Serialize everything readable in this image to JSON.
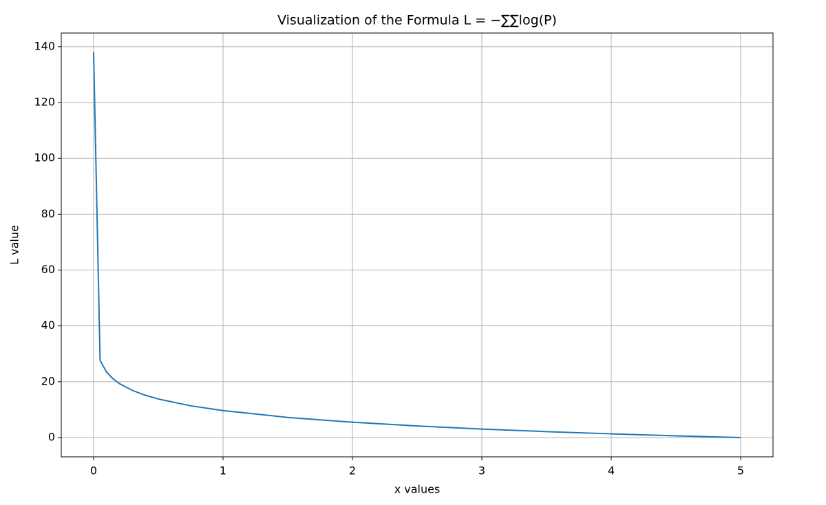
{
  "chart_data": {
    "type": "line",
    "title": "Visualization of the Formula L = −∑∑log(P)",
    "x_label": "x values",
    "y_label": "L value",
    "x": [
      0,
      0.05,
      0.1,
      0.15,
      0.2,
      0.3,
      0.4,
      0.5,
      0.75,
      1,
      1.5,
      2,
      2.5,
      3,
      3.5,
      4,
      4.5,
      5
    ],
    "series": [
      {
        "name": "L",
        "color": "#1f77b4",
        "values": [
          138,
          27.63,
          23.47,
          21.04,
          19.31,
          16.88,
          15.15,
          13.82,
          11.38,
          9.66,
          7.22,
          5.5,
          4.16,
          3.06,
          2.14,
          1.34,
          0.63,
          0
        ]
      }
    ],
    "xlim": [
      -0.25,
      5.25
    ],
    "xticks": [
      0,
      1,
      2,
      3,
      4,
      5
    ],
    "ylim": [
      -6.9,
      144.9
    ],
    "yticks": [
      0,
      20,
      40,
      60,
      80,
      100,
      120,
      140
    ],
    "grid": true
  }
}
